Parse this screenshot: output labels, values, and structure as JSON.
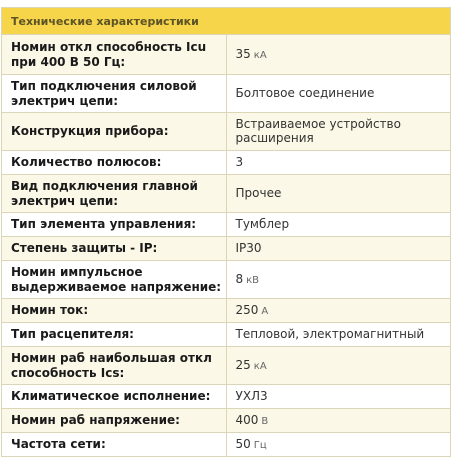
{
  "header": {
    "title": "Технические характеристики"
  },
  "rows": [
    {
      "name": "Номин откл способность Icu при 400 В 50 Гц:",
      "value": "35",
      "unit": "кА"
    },
    {
      "name": "Тип подключения силовой электрич цепи:",
      "value": "Болтовое соединение",
      "unit": ""
    },
    {
      "name": "Конструкция прибора:",
      "value": "Встраиваемое устройство расширения",
      "unit": ""
    },
    {
      "name": "Количество полюсов:",
      "value": "3",
      "unit": ""
    },
    {
      "name": "Вид подключения главной электрич цепи:",
      "value": "Прочее",
      "unit": ""
    },
    {
      "name": "Тип элемента управления:",
      "value": "Тумблер",
      "unit": ""
    },
    {
      "name": "Степень защиты - IP:",
      "value": "IP30",
      "unit": ""
    },
    {
      "name": "Номин импульсное выдерживаемое напряжение:",
      "value": "8",
      "unit": "кВ"
    },
    {
      "name": "Номин ток:",
      "value": "250",
      "unit": "А"
    },
    {
      "name": "Тип расцепителя:",
      "value": "Тепловой, электромагнитный",
      "unit": ""
    },
    {
      "name": "Номин раб наибольшая откл способность Ics:",
      "value": "25",
      "unit": "кА"
    },
    {
      "name": "Климатическое исполнение:",
      "value": "УХЛ3",
      "unit": ""
    },
    {
      "name": "Номин раб напряжение:",
      "value": "400",
      "unit": "В"
    },
    {
      "name": "Частота сети:",
      "value": "50",
      "unit": "Гц"
    }
  ]
}
